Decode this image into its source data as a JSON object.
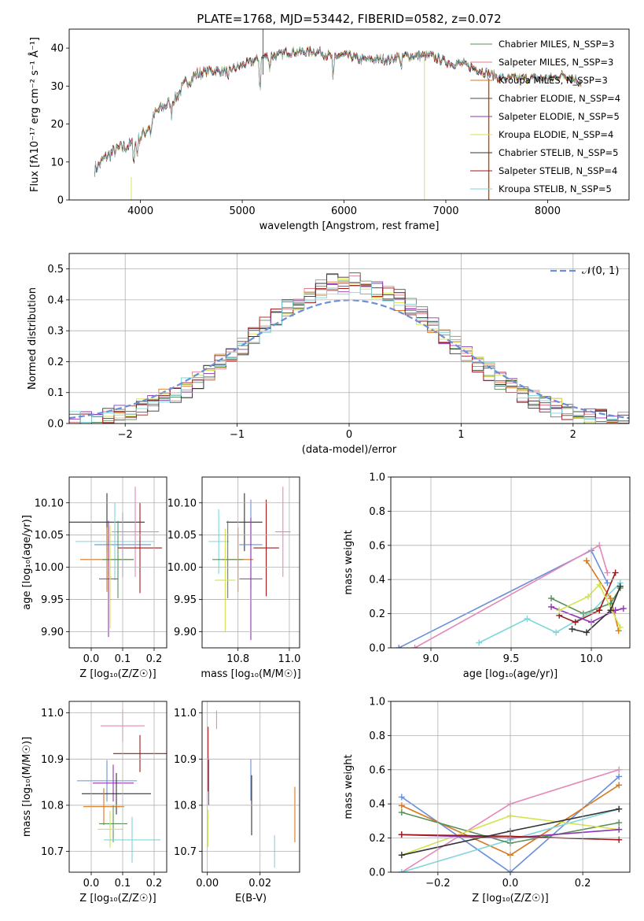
{
  "figure_title": "PLATE=1768, MJD=53442, FIBERID=0582, z=0.072",
  "colors": {
    "chabrier_miles": "#5a8f5a",
    "salpeter_miles": "#e07b8f",
    "kroupa_miles": "#d9771c",
    "chabrier_elodie": "#4b4b4b",
    "salpeter_elodie": "#8f34b3",
    "kroupa_elodie": "#d4e34f",
    "chabrier_stelib": "#333333",
    "salpeter_stelib": "#a01818",
    "kroupa_stelib": "#7fd6db",
    "blue": "#6a8fd8",
    "pink": "#e687b8",
    "grid": "#b0b0b0"
  },
  "chart_data": [
    {
      "id": "spectrum",
      "type": "line",
      "title": "PLATE=1768, MJD=53442, FIBERID=0582, z=0.072",
      "xlabel": "wavelength [Angstrom, rest frame]",
      "ylabel": "Flux [fλ10⁻¹⁷ erg cm⁻² s⁻¹ Å⁻¹]",
      "xlim": [
        3300,
        8800
      ],
      "ylim": [
        0,
        45
      ],
      "xticks": [
        4000,
        5000,
        6000,
        7000,
        8000
      ],
      "yticks": [
        0,
        10,
        20,
        30,
        40
      ],
      "grid": false,
      "legend_position": "top-right",
      "continuum_x": [
        3550,
        3650,
        3750,
        3850,
        3950,
        4050,
        4150,
        4250,
        4350,
        4450,
        4550,
        4650,
        4750,
        4850,
        4950,
        5050,
        5150,
        5250,
        5350,
        5450,
        5550,
        5650,
        5750,
        5850,
        5950,
        6050,
        6150,
        6250,
        6350,
        6450,
        6550,
        6650,
        6750,
        6850,
        6950,
        7050,
        7150,
        7250,
        7350,
        7450,
        7550,
        7650,
        7750,
        7850,
        7950,
        8050,
        8150,
        8250,
        8330
      ],
      "continuum_y": [
        8,
        11,
        13,
        14,
        15,
        18,
        23,
        25,
        27,
        31,
        33,
        34,
        34,
        34,
        35,
        36,
        37,
        38,
        38,
        39,
        39,
        39,
        39,
        38,
        38,
        38,
        37,
        37,
        37,
        37,
        38,
        38,
        38,
        38,
        37,
        36,
        36,
        35,
        34,
        33,
        32,
        32,
        32,
        32,
        32,
        32,
        33,
        32,
        31
      ],
      "legend": [
        "Chabrier MILES, N_SSP=3",
        "Salpeter MILES, N_SSP=3",
        "Kroupa MILES, N_SSP=3",
        "Chabrier ELODIE, N_SSP=4",
        "Salpeter ELODIE, N_SSP=5",
        "Kroupa ELODIE, N_SSP=4",
        "Chabrier STELIB, N_SSP=5",
        "Salpeter STELIB, N_SSP=4",
        "Kroupa STELIB, N_SSP=5"
      ],
      "legend_keys": [
        "chabrier_miles",
        "salpeter_miles",
        "kroupa_miles",
        "chabrier_elodie",
        "salpeter_elodie",
        "kroupa_elodie",
        "chabrier_stelib",
        "salpeter_stelib",
        "kroupa_stelib"
      ]
    },
    {
      "id": "residuals",
      "type": "line",
      "xlabel": "(data-model)/error",
      "ylabel": "Normed distribution",
      "xlim": [
        -2.5,
        2.5
      ],
      "ylim": [
        0,
        0.55
      ],
      "xticks": [
        -2,
        -1,
        0,
        1,
        2
      ],
      "yticks": [
        0.0,
        0.1,
        0.2,
        0.3,
        0.4,
        0.5
      ],
      "grid": true,
      "legend": [
        "𝒩(0, 1)"
      ],
      "legend_position": "top-right",
      "bin_width": 0.1
    },
    {
      "id": "age_vs_Z",
      "type": "scatter",
      "xlabel": "Z [log₁₀(Z/Z☉)]",
      "ylabel": "age  [log₁₀(age/yr)]",
      "xlim": [
        -0.07,
        0.24
      ],
      "ylim": [
        9.875,
        10.14
      ],
      "xticks": [
        0.0,
        0.1,
        0.2
      ],
      "yticks": [
        9.9,
        9.95,
        10.0,
        10.05,
        10.1
      ],
      "grid": true,
      "points": [
        {
          "k": "chabrier_stelib",
          "x": 0.05,
          "xe": 0.12,
          "y": 10.07,
          "ye": 0.045
        },
        {
          "k": "blue",
          "x": 0.1,
          "xe": 0.09,
          "y": 10.035,
          "ye": 0.05
        },
        {
          "k": "pink",
          "x": 0.14,
          "xe": 0.075,
          "y": 10.055,
          "ye": 0.07
        },
        {
          "k": "kroupa_miles",
          "x": 0.05,
          "xe": 0.085,
          "y": 10.012,
          "ye": 0.05
        },
        {
          "k": "kroupa_stelib",
          "x": 0.075,
          "xe": 0.125,
          "y": 10.04,
          "ye": 0.06
        },
        {
          "k": "chabrier_miles",
          "x": 0.085,
          "xe": 0.05,
          "y": 10.012,
          "ye": 0.06
        },
        {
          "k": "salpeter_stelib",
          "x": 0.155,
          "xe": 0.07,
          "y": 10.03,
          "ye": 0.07
        },
        {
          "k": "salpeter_elodie",
          "x": 0.055,
          "xe": 0.03,
          "y": 9.982,
          "ye": 0.09
        },
        {
          "k": "kroupa_elodie",
          "x": 0.06,
          "xe": 0.005,
          "y": 9.985,
          "ye": 0.08
        }
      ]
    },
    {
      "id": "age_vs_mass",
      "type": "scatter",
      "xlabel": "mass [log₁₀(M/M☉)]",
      "ylabel": "",
      "xlim": [
        10.66,
        11.04
      ],
      "ylim": [
        9.875,
        10.14
      ],
      "xticks": [
        10.8,
        11.0
      ],
      "yticks": [
        9.9,
        9.95,
        10.0,
        10.05,
        10.1
      ],
      "grid": true,
      "points": [
        {
          "k": "chabrier_stelib",
          "x": 10.825,
          "xe": 0.07,
          "y": 10.07,
          "ye": 0.045
        },
        {
          "k": "blue",
          "x": 10.85,
          "xe": 0.045,
          "y": 10.035,
          "ye": 0.07
        },
        {
          "k": "pink",
          "x": 10.975,
          "xe": 0.03,
          "y": 10.055,
          "ye": 0.07
        },
        {
          "k": "kroupa_miles",
          "x": 10.8,
          "xe": 0.06,
          "y": 10.012,
          "ye": 0.05
        },
        {
          "k": "kroupa_stelib",
          "x": 10.725,
          "xe": 0.04,
          "y": 10.04,
          "ye": 0.05
        },
        {
          "k": "chabrier_miles",
          "x": 10.76,
          "xe": 0.06,
          "y": 10.012,
          "ye": 0.06
        },
        {
          "k": "salpeter_stelib",
          "x": 10.91,
          "xe": 0.05,
          "y": 10.03,
          "ye": 0.075
        },
        {
          "k": "salpeter_elodie",
          "x": 10.85,
          "xe": 0.045,
          "y": 9.982,
          "ye": 0.095
        },
        {
          "k": "kroupa_elodie",
          "x": 10.75,
          "xe": 0.04,
          "y": 9.98,
          "ye": 0.08
        }
      ]
    },
    {
      "id": "mass_weight_vs_age",
      "type": "line",
      "xlabel": "age  [log₁₀(age/yr)]",
      "ylabel": "mass weight",
      "xlim": [
        8.75,
        10.24
      ],
      "ylim": [
        0,
        1.0
      ],
      "xticks": [
        9.0,
        9.5,
        10.0
      ],
      "yticks": [
        0.0,
        0.2,
        0.4,
        0.6,
        0.8,
        1.0
      ],
      "grid": true,
      "series": [
        {
          "k": "blue",
          "x": [
            8.8,
            10.0,
            10.1
          ],
          "y": [
            0.0,
            0.57,
            0.38
          ]
        },
        {
          "k": "pink",
          "x": [
            8.9,
            10.05,
            10.1
          ],
          "y": [
            0.0,
            0.6,
            0.44
          ]
        },
        {
          "k": "kroupa_miles",
          "x": [
            9.97,
            10.12,
            10.17
          ],
          "y": [
            0.51,
            0.29,
            0.1
          ]
        },
        {
          "k": "kroupa_stelib",
          "x": [
            9.3,
            9.6,
            9.78,
            10.0,
            10.18
          ],
          "y": [
            0.03,
            0.17,
            0.09,
            0.21,
            0.38
          ]
        },
        {
          "k": "chabrier_miles",
          "x": [
            9.75,
            9.95,
            10.12,
            10.18
          ],
          "y": [
            0.29,
            0.2,
            0.26,
            0.35
          ]
        },
        {
          "k": "salpeter_stelib",
          "x": [
            9.8,
            9.9,
            10.05,
            10.15
          ],
          "y": [
            0.19,
            0.15,
            0.22,
            0.44
          ]
        },
        {
          "k": "salpeter_elodie",
          "x": [
            9.75,
            10.0,
            10.15,
            10.2
          ],
          "y": [
            0.24,
            0.15,
            0.22,
            0.23
          ]
        },
        {
          "k": "kroupa_elodie",
          "x": [
            9.8,
            9.98,
            10.05,
            10.18
          ],
          "y": [
            0.22,
            0.3,
            0.37,
            0.12
          ]
        },
        {
          "k": "chabrier_stelib",
          "x": [
            9.88,
            9.97,
            10.12,
            10.18
          ],
          "y": [
            0.11,
            0.09,
            0.22,
            0.36
          ]
        }
      ]
    },
    {
      "id": "mass_vs_Z",
      "type": "scatter",
      "xlabel": "Z [log₁₀(Z/Z☉)]",
      "ylabel": "mass [log₁₀(M/M☉)]",
      "xlim": [
        -0.07,
        0.24
      ],
      "ylim": [
        10.655,
        11.025
      ],
      "xticks": [
        0.0,
        0.1,
        0.2
      ],
      "yticks": [
        10.7,
        10.8,
        10.9,
        11.0
      ],
      "grid": true,
      "points": [
        {
          "k": "pink",
          "x": 0.1,
          "xe": 0.07,
          "y": 10.972,
          "ye": 0.035
        },
        {
          "k": "salpeter_stelib",
          "x": 0.155,
          "xe": 0.085,
          "y": 10.912,
          "ye": 0.04
        },
        {
          "k": "blue",
          "x": 0.05,
          "xe": 0.095,
          "y": 10.853,
          "ye": 0.045
        },
        {
          "k": "salpeter_elodie",
          "x": 0.07,
          "xe": 0.065,
          "y": 10.848,
          "ye": 0.04
        },
        {
          "k": "chabrier_stelib",
          "x": 0.08,
          "xe": 0.11,
          "y": 10.825,
          "ye": 0.045
        },
        {
          "k": "kroupa_miles",
          "x": 0.04,
          "xe": 0.065,
          "y": 10.797,
          "ye": 0.04
        },
        {
          "k": "chabrier_miles",
          "x": 0.07,
          "xe": 0.045,
          "y": 10.76,
          "ye": 0.04
        },
        {
          "k": "kroupa_elodie",
          "x": 0.06,
          "xe": 0.04,
          "y": 10.748,
          "ye": 0.04
        },
        {
          "k": "kroupa_stelib",
          "x": 0.13,
          "xe": 0.09,
          "y": 10.725,
          "ye": 0.05
        }
      ]
    },
    {
      "id": "mass_vs_ebv",
      "type": "scatter",
      "xlabel": "E(B-V)",
      "ylabel": "",
      "xlim": [
        -0.002,
        0.035
      ],
      "ylim": [
        10.655,
        11.025
      ],
      "xticks": [
        0.0,
        0.02
      ],
      "yticks": [
        10.7,
        10.8,
        10.9,
        11.0
      ],
      "grid": true,
      "points": [
        {
          "k": "pink",
          "x": 0.0035,
          "xe": 0,
          "y": 10.985,
          "ye": 0.02
        },
        {
          "k": "salpeter_stelib",
          "x": 0.0003,
          "xe": 0,
          "y": 10.9,
          "ye": 0.07
        },
        {
          "k": "salpeter_elodie",
          "x": 0.0005,
          "xe": 0,
          "y": 10.85,
          "ye": 0.05
        },
        {
          "k": "kroupa_elodie",
          "x": 0.0003,
          "xe": 0,
          "y": 10.75,
          "ye": 0.04
        },
        {
          "k": "blue",
          "x": 0.0165,
          "xe": 0,
          "y": 10.855,
          "ye": 0.045
        },
        {
          "k": "chabrier_stelib",
          "x": 0.0168,
          "xe": 0,
          "y": 10.8,
          "ye": 0.065
        },
        {
          "k": "kroupa_miles",
          "x": 0.0332,
          "xe": 0,
          "y": 10.78,
          "ye": 0.06
        },
        {
          "k": "kroupa_stelib",
          "x": 0.0255,
          "xe": 0,
          "y": 10.7,
          "ye": 0.035
        }
      ]
    },
    {
      "id": "mass_weight_vs_Z",
      "type": "line",
      "xlabel": "Z [log₁₀(Z/Z☉)]",
      "ylabel": "mass weight",
      "xlim": [
        -0.33,
        0.33
      ],
      "ylim": [
        0,
        1.0
      ],
      "xticks": [
        -0.2,
        0.0,
        0.2
      ],
      "yticks": [
        0.0,
        0.2,
        0.4,
        0.6,
        0.8,
        1.0
      ],
      "grid": true,
      "series": [
        {
          "k": "blue",
          "x": [
            -0.3,
            0.0,
            0.3
          ],
          "y": [
            0.44,
            0.0,
            0.56
          ]
        },
        {
          "k": "pink",
          "x": [
            -0.3,
            0.0,
            0.3
          ],
          "y": [
            0.0,
            0.4,
            0.6
          ]
        },
        {
          "k": "kroupa_miles",
          "x": [
            -0.3,
            0.0,
            0.3
          ],
          "y": [
            0.39,
            0.1,
            0.51
          ]
        },
        {
          "k": "kroupa_stelib",
          "x": [
            -0.3,
            0.0,
            0.3
          ],
          "y": [
            0.0,
            0.19,
            0.37
          ]
        },
        {
          "k": "chabrier_miles",
          "x": [
            -0.3,
            0.0,
            0.3
          ],
          "y": [
            0.35,
            0.17,
            0.29
          ]
        },
        {
          "k": "kroupa_elodie",
          "x": [
            -0.3,
            0.0,
            0.3
          ],
          "y": [
            0.1,
            0.33,
            0.25
          ]
        },
        {
          "k": "salpeter_elodie",
          "x": [
            -0.3,
            0.0,
            0.3
          ],
          "y": [
            0.22,
            0.2,
            0.25
          ]
        },
        {
          "k": "salpeter_stelib",
          "x": [
            -0.3,
            0.0,
            0.3
          ],
          "y": [
            0.22,
            0.21,
            0.19
          ]
        },
        {
          "k": "chabrier_stelib",
          "x": [
            -0.3,
            0.0,
            0.3
          ],
          "y": [
            0.1,
            0.24,
            0.37
          ]
        }
      ]
    }
  ]
}
